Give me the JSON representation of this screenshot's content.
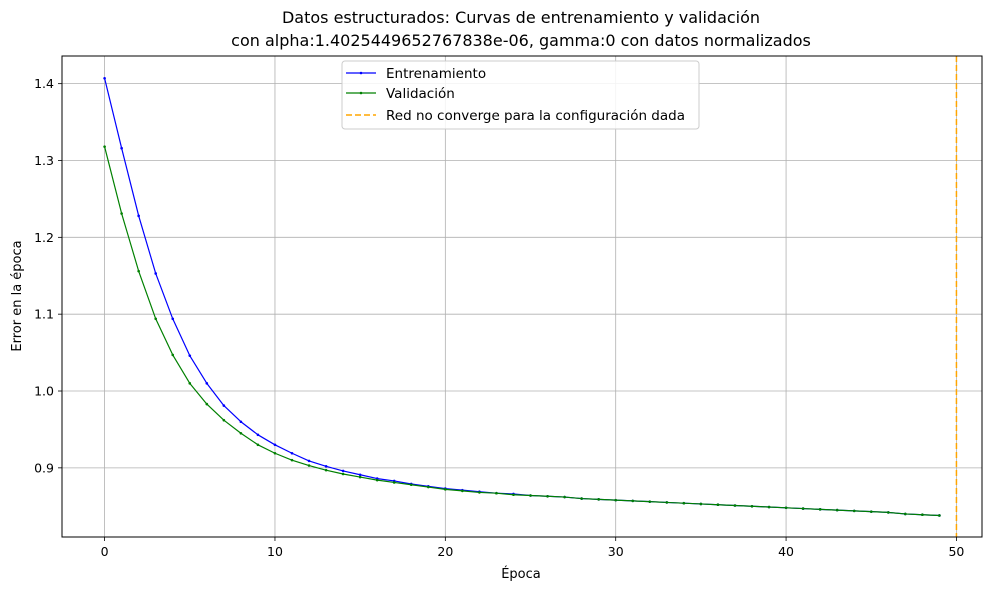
{
  "chart_data": {
    "type": "line",
    "title": "Datos estructurados: Curvas de entrenamiento y validación",
    "subtitle": "con alpha:1.4025449652767838e-06, gamma:0 con datos normalizados",
    "xlabel": "Época",
    "ylabel": "Error en la época",
    "xlim": [
      -2.5,
      51.5
    ],
    "ylim": [
      0.81,
      1.436
    ],
    "x_ticks": [
      0,
      10,
      20,
      30,
      40,
      50
    ],
    "y_ticks": [
      0.9,
      1.0,
      1.1,
      1.2,
      1.3,
      1.4
    ],
    "grid": true,
    "legend_position": "upper center",
    "series": [
      {
        "name": "Entrenamiento",
        "color": "#0000ff",
        "x": [
          0,
          1,
          2,
          3,
          4,
          5,
          6,
          7,
          8,
          9,
          10,
          11,
          12,
          13,
          14,
          15,
          16,
          17,
          18,
          19,
          20,
          21,
          22,
          23,
          24,
          25,
          26,
          27,
          28,
          29,
          30,
          31,
          32,
          33,
          34,
          35,
          36,
          37,
          38,
          39,
          40,
          41,
          42,
          43,
          44,
          45,
          46,
          47,
          48,
          49
        ],
        "values": [
          1.407,
          1.316,
          1.228,
          1.153,
          1.094,
          1.046,
          1.01,
          0.981,
          0.96,
          0.943,
          0.93,
          0.919,
          0.909,
          0.902,
          0.896,
          0.891,
          0.886,
          0.883,
          0.879,
          0.876,
          0.873,
          0.871,
          0.869,
          0.867,
          0.866,
          0.864,
          0.863,
          0.862,
          0.86,
          0.859,
          0.858,
          0.857,
          0.856,
          0.855,
          0.854,
          0.853,
          0.852,
          0.851,
          0.85,
          0.849,
          0.848,
          0.847,
          0.846,
          0.845,
          0.844,
          0.843,
          0.842,
          0.84,
          0.839,
          0.838
        ]
      },
      {
        "name": "Validación",
        "color": "#008000",
        "x": [
          0,
          1,
          2,
          3,
          4,
          5,
          6,
          7,
          8,
          9,
          10,
          11,
          12,
          13,
          14,
          15,
          16,
          17,
          18,
          19,
          20,
          21,
          22,
          23,
          24,
          25,
          26,
          27,
          28,
          29,
          30,
          31,
          32,
          33,
          34,
          35,
          36,
          37,
          38,
          39,
          40,
          41,
          42,
          43,
          44,
          45,
          46,
          47,
          48,
          49
        ],
        "values": [
          1.318,
          1.231,
          1.156,
          1.094,
          1.047,
          1.01,
          0.983,
          0.962,
          0.945,
          0.93,
          0.919,
          0.91,
          0.903,
          0.897,
          0.892,
          0.888,
          0.884,
          0.881,
          0.878,
          0.875,
          0.872,
          0.87,
          0.868,
          0.867,
          0.865,
          0.864,
          0.863,
          0.862,
          0.86,
          0.859,
          0.858,
          0.857,
          0.856,
          0.855,
          0.854,
          0.853,
          0.852,
          0.851,
          0.85,
          0.849,
          0.848,
          0.847,
          0.846,
          0.845,
          0.844,
          0.843,
          0.842,
          0.84,
          0.839,
          0.838
        ]
      }
    ],
    "vline": {
      "name": "Red no converge para la configuración dada",
      "x": 50,
      "color": "#ffa500",
      "style": "dashed"
    }
  }
}
